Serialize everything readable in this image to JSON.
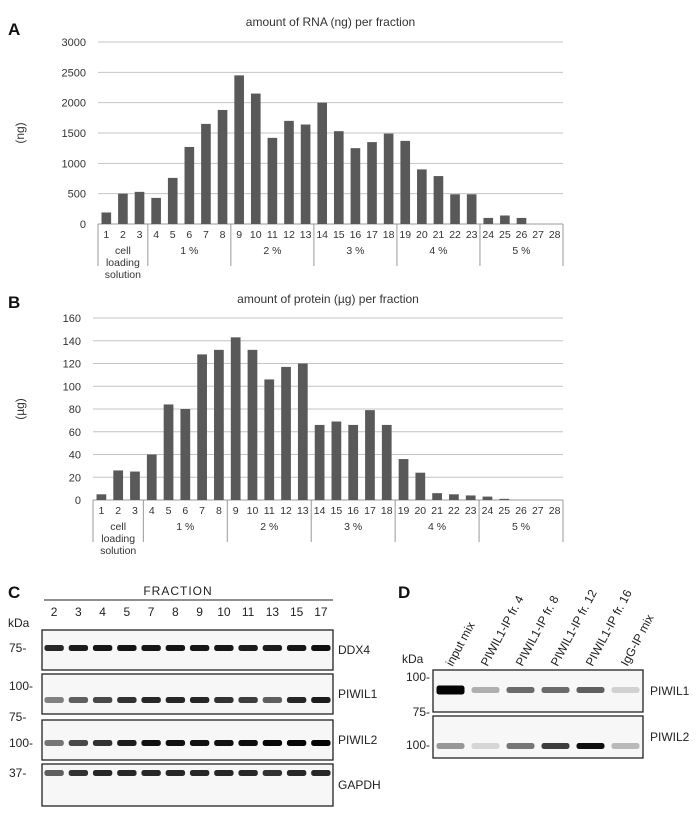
{
  "panels": {
    "a_letter": "A",
    "b_letter": "B",
    "c_letter": "C",
    "d_letter": "D"
  },
  "chart_data": [
    {
      "type": "bar",
      "title": "amount of RNA (ng) per fraction",
      "ylabel": "(ng)",
      "xlabel": "",
      "ylim": [
        0,
        3000
      ],
      "yticks": [
        0,
        500,
        1000,
        1500,
        2000,
        2500,
        3000
      ],
      "categories": [
        "1",
        "2",
        "3",
        "4",
        "5",
        "6",
        "7",
        "8",
        "9",
        "10",
        "11",
        "12",
        "13",
        "14",
        "15",
        "16",
        "17",
        "18",
        "19",
        "20",
        "21",
        "22",
        "23",
        "24",
        "25",
        "26",
        "27",
        "28"
      ],
      "values": [
        190,
        500,
        530,
        430,
        760,
        1270,
        1650,
        1880,
        2450,
        2150,
        1420,
        1700,
        1640,
        2000,
        1530,
        1250,
        1350,
        1490,
        1370,
        900,
        790,
        490,
        490,
        100,
        140,
        100,
        0,
        0
      ],
      "groups": [
        {
          "label": "cell\nloading\nsolution",
          "from": 1,
          "to": 3
        },
        {
          "label": "1 %",
          "from": 4,
          "to": 8
        },
        {
          "label": "2 %",
          "from": 9,
          "to": 13
        },
        {
          "label": "3 %",
          "from": 14,
          "to": 18
        },
        {
          "label": "4 %",
          "from": 19,
          "to": 23
        },
        {
          "label": "5 %",
          "from": 24,
          "to": 28
        }
      ],
      "grid": true,
      "legend": "none"
    },
    {
      "type": "bar",
      "title": "amount of protein (µg) per fraction",
      "ylabel": "(µg)",
      "xlabel": "",
      "ylim": [
        0,
        160
      ],
      "yticks": [
        0,
        20,
        40,
        60,
        80,
        100,
        120,
        140,
        160
      ],
      "categories": [
        "1",
        "2",
        "3",
        "4",
        "5",
        "6",
        "7",
        "8",
        "9",
        "10",
        "11",
        "12",
        "13",
        "14",
        "15",
        "16",
        "17",
        "18",
        "19",
        "20",
        "21",
        "22",
        "23",
        "24",
        "25",
        "26",
        "27",
        "28"
      ],
      "values": [
        5,
        26,
        25,
        40,
        84,
        80,
        128,
        132,
        143,
        132,
        106,
        117,
        120,
        66,
        69,
        66,
        79,
        66,
        36,
        24,
        6,
        5,
        4,
        3,
        1,
        0,
        0,
        0
      ],
      "groups": [
        {
          "label": "cell\nloading\nsolution",
          "from": 1,
          "to": 3
        },
        {
          "label": "1 %",
          "from": 4,
          "to": 8
        },
        {
          "label": "2 %",
          "from": 9,
          "to": 13
        },
        {
          "label": "3 %",
          "from": 14,
          "to": 18
        },
        {
          "label": "4 %",
          "from": 19,
          "to": 23
        },
        {
          "label": "5 %",
          "from": 24,
          "to": 28
        }
      ],
      "grid": true,
      "legend": "none"
    }
  ],
  "blot_c": {
    "header": "FRACTION",
    "kda_label": "kDa",
    "lanes": [
      "2",
      "3",
      "4",
      "5",
      "7",
      "8",
      "9",
      "10",
      "11",
      "13",
      "15",
      "17"
    ],
    "rows": [
      {
        "label": "DDX4",
        "marker": "75-",
        "intensity": [
          0.85,
          0.9,
          0.92,
          0.93,
          0.93,
          0.93,
          0.92,
          0.92,
          0.9,
          0.9,
          0.92,
          0.95
        ]
      },
      {
        "label": "PIWIL1",
        "markers": [
          "100-",
          "75-"
        ],
        "intensity": [
          0.45,
          0.6,
          0.7,
          0.8,
          0.85,
          0.85,
          0.85,
          0.8,
          0.75,
          0.6,
          0.85,
          0.9
        ]
      },
      {
        "label": "PIWIL2",
        "marker": "100-",
        "intensity": [
          0.5,
          0.7,
          0.8,
          0.9,
          0.95,
          0.95,
          0.95,
          0.95,
          0.97,
          1.0,
          1.0,
          1.0
        ]
      },
      {
        "label": "GAPDH",
        "marker": "37-",
        "intensity": [
          0.6,
          0.8,
          0.85,
          0.85,
          0.85,
          0.85,
          0.85,
          0.85,
          0.85,
          0.8,
          0.85,
          0.85
        ]
      }
    ]
  },
  "blot_d": {
    "kda_label": "kDa",
    "lanes": [
      "input mix",
      "PIWIL1-IP fr. 4",
      "PIWIL1-IP fr. 8",
      "PIWIL1-IP fr. 12",
      "PIWIL1-IP fr. 16",
      "IgG-IP mix"
    ],
    "rows": [
      {
        "label": "PIWIL1",
        "markers": [
          "100-",
          "75-"
        ],
        "intensity": [
          1.0,
          0.25,
          0.55,
          0.55,
          0.6,
          0.1
        ]
      },
      {
        "label": "PIWIL2",
        "marker": "100-",
        "intensity": [
          0.35,
          0.08,
          0.5,
          0.75,
          0.95,
          0.2
        ]
      }
    ]
  }
}
